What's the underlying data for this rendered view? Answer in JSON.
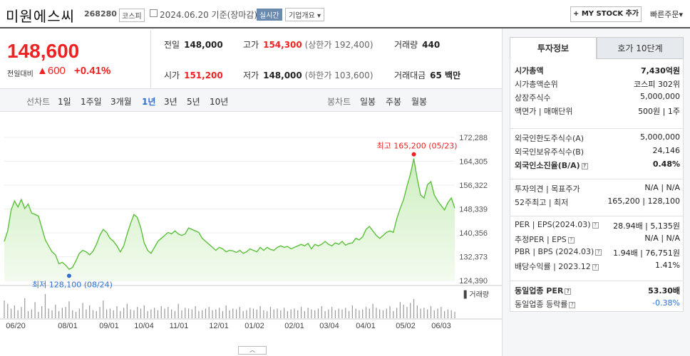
{
  "header": {
    "name": "미원에스씨",
    "code": "268280",
    "market": "코스피",
    "date": "2024.06.20",
    "basis": "기준(장마감)",
    "realtime_badge": "실시간",
    "overview_button": "기업개요",
    "mystock_button": "+ MY STOCK 추가",
    "quick_order": "빠른주문"
  },
  "price": {
    "current": "148,600",
    "change_label": "전일대비",
    "change": "600",
    "change_pct": "+0.41%"
  },
  "quotes": {
    "prev_label": "전일",
    "prev": "148,000",
    "high_label": "고가",
    "high": "154,300",
    "upper_limit": "(상한가 192,400)",
    "volume_label": "거래량",
    "volume": "440",
    "open_label": "시가",
    "open": "151,200",
    "low_label": "저가",
    "low": "148,000",
    "lower_limit": "(하한가 103,600)",
    "amount_label": "거래대금",
    "amount": "65 백만"
  },
  "period_tabs": {
    "line_label": "선차트",
    "items": [
      "1일",
      "1주일",
      "3개월",
      "1년",
      "3년",
      "5년",
      "10년"
    ],
    "active": "1년",
    "candle_label": "봉차트",
    "candle_items": [
      "일봉",
      "주봉",
      "월봉"
    ]
  },
  "chart_data": {
    "type": "area",
    "y_ticks": [
      "172,288",
      "164,305",
      "156,322",
      "148,339",
      "140,356",
      "132,373",
      "124,390"
    ],
    "ylim": [
      124390,
      172288
    ],
    "x_ticks": [
      "06/20",
      "08/01",
      "09/01",
      "10/04",
      "11/01",
      "12/01",
      "01/02",
      "02/01",
      "03/04",
      "04/01",
      "05/02",
      "06/03"
    ],
    "max_label": "최고 165,200 (05/23)",
    "min_label": "최저 128,100 (08/24)",
    "volume_label": "거래량",
    "series": [
      {
        "values": [
          137500,
          141000,
          148000,
          151000,
          149000,
          151500,
          148500,
          150000,
          147000,
          146500,
          146000,
          142000,
          138000,
          136000,
          134000,
          133000,
          130000,
          130500,
          129500,
          128100,
          128800,
          131000,
          133500,
          134500,
          134000,
          133000,
          134200,
          136500,
          139500,
          141500,
          140500,
          138500,
          137500,
          136000,
          134000,
          136000,
          140000,
          143500,
          146500,
          145500,
          142000,
          137000,
          134500,
          133500,
          135500,
          137500,
          138500,
          139500,
          140500,
          140000,
          141000,
          140000,
          139500,
          140000,
          142000,
          141500,
          141000,
          140500,
          138500,
          137500,
          136500,
          135500,
          134500,
          135500,
          135000,
          134000,
          134500,
          134300,
          133800,
          134500,
          133500,
          134000,
          135000,
          134500,
          134000,
          135500,
          134500,
          135500,
          134800,
          134500,
          135500,
          136000,
          135500,
          135800,
          135000,
          135500,
          136000,
          136500,
          136000,
          136800,
          135000,
          136500,
          136000,
          136500,
          137500,
          136500,
          136000,
          137000,
          136500,
          137500,
          136200,
          136800,
          137000,
          138500,
          138000,
          139000,
          141500,
          142500,
          141000,
          139500,
          138500,
          139500,
          140500,
          141000,
          140500,
          145000,
          148500,
          151500,
          156000,
          160000,
          165200,
          158500,
          153000,
          152000,
          156500,
          157500,
          153000,
          151000,
          149500,
          148000,
          150500,
          152000,
          148600
        ]
      }
    ],
    "volume": [
      22,
      18,
      12,
      16,
      10,
      14,
      25,
      9,
      11,
      20,
      8,
      15,
      30,
      12,
      10,
      17,
      9,
      13,
      14,
      21,
      10,
      8,
      12,
      19,
      11,
      16,
      10,
      9,
      14,
      22,
      11,
      12,
      10,
      15,
      9,
      13,
      18,
      11,
      10,
      14,
      12,
      16,
      9,
      11,
      13,
      10,
      15,
      12,
      14,
      11,
      9,
      18,
      10,
      13,
      12,
      11,
      15,
      9,
      10,
      12,
      14,
      10,
      11,
      13,
      9,
      16,
      10,
      12,
      11,
      14,
      9,
      10,
      13,
      12,
      11,
      15,
      10,
      9,
      14,
      11,
      12,
      10,
      13,
      9,
      11,
      12,
      10,
      14,
      9,
      13,
      11,
      10,
      12,
      15,
      9,
      11,
      14,
      10,
      12,
      11,
      13,
      9,
      16,
      12,
      10,
      11,
      14,
      12,
      18,
      13,
      11,
      10,
      12,
      15,
      9,
      13,
      20,
      17,
      14,
      19,
      24,
      16,
      12,
      13,
      11,
      15,
      10,
      12,
      14,
      9,
      11,
      10,
      8
    ]
  },
  "right_panel": {
    "tabs": [
      "투자정보",
      "호가 10단계"
    ],
    "rows1": [
      {
        "l": "시가총액",
        "r": "7,430억원",
        "bold": true
      },
      {
        "l": "시가총액순위",
        "r": "코스피 302위"
      },
      {
        "l": "상장주식수",
        "r": "5,000,000"
      },
      {
        "l": "액면가 | 매매단위",
        "r": "500원 | 1주"
      }
    ],
    "rows2": [
      {
        "l": "외국인한도주식수(A)",
        "r": "5,000,000"
      },
      {
        "l": "외국인보유주식수(B)",
        "r": "24,146"
      },
      {
        "l": "외국인소진율(B/A)",
        "r": "0.48%",
        "bold": true
      }
    ],
    "rows3": [
      {
        "l": "투자의견 | 목표주가",
        "r": "N/A | N/A"
      },
      {
        "l": "52주최고 | 최저",
        "r": "165,200 | 128,100"
      }
    ],
    "rows4": [
      {
        "l": "PER | EPS(2024.03)",
        "r": "28.94배 | 5,135원"
      },
      {
        "l": "추정PER | EPS",
        "r": "N/A | N/A"
      },
      {
        "l": "PBR | BPS (2024.03)",
        "r": "1.94배 | 76,751원"
      },
      {
        "l": "배당수익률 | 2023.12",
        "r": "1.41%"
      }
    ],
    "rows5": [
      {
        "l": "동일업종 PER",
        "r": "53.30배",
        "bold": true
      },
      {
        "l": "동일업종 등락률",
        "r": "-0.38%",
        "blue": true
      }
    ]
  }
}
